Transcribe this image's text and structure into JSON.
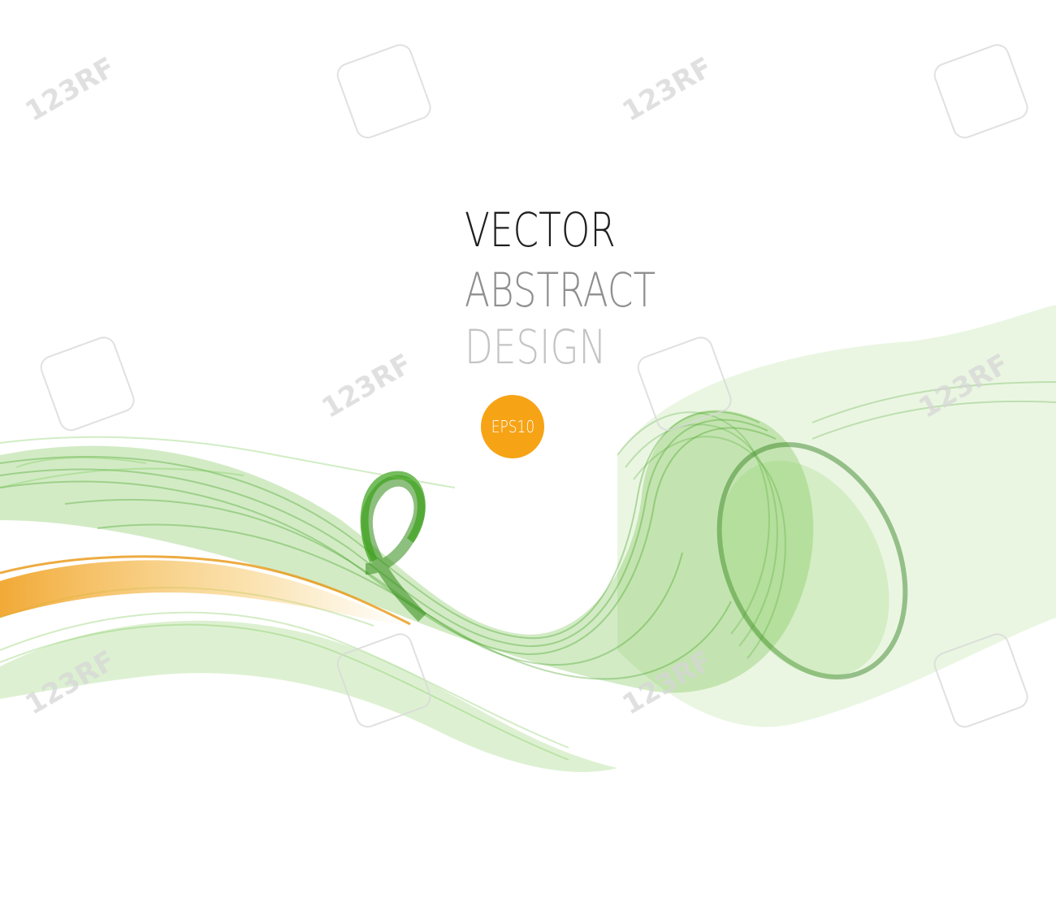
{
  "headline": {
    "line1": "VECTOR",
    "line2": "ABSTRACT",
    "line3": "DESIGN"
  },
  "badge": {
    "label": "EPS10",
    "color": "#f6a316"
  },
  "watermark": {
    "text": "123RF"
  },
  "colors": {
    "wave_green": "#4caf1f",
    "wave_dark_green": "#2e7d1a",
    "wave_orange": "#f0a020",
    "background": "#ffffff"
  }
}
